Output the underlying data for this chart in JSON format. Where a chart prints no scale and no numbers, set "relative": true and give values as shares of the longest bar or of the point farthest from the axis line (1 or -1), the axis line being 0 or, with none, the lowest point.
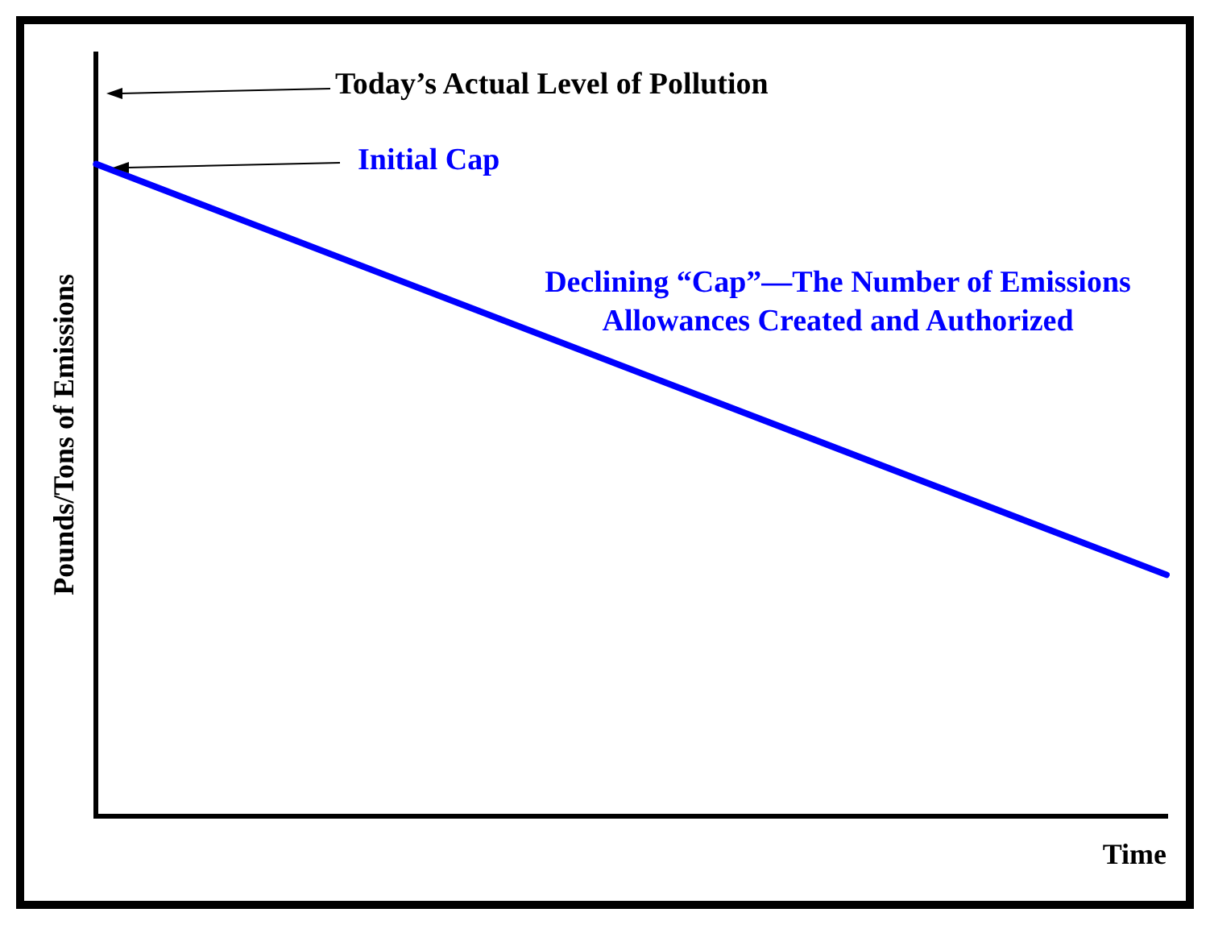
{
  "chart_data": {
    "type": "line",
    "relative": true,
    "xlabel": "Time",
    "ylabel": "Pounds/Tons of Emissions",
    "categories": [
      null,
      null
    ],
    "series": [
      {
        "color": "#0000ff",
        "values": [
          1,
          0.37
        ]
      }
    ],
    "annotations": [
      "Today’s Actual Level of Pollution",
      "Initial Cap",
      "Declining “Cap”—The Number of Emissions Allowances Created and Authorized"
    ],
    "legend": false,
    "grid": false,
    "marker": "none",
    "line_style": "solid"
  }
}
